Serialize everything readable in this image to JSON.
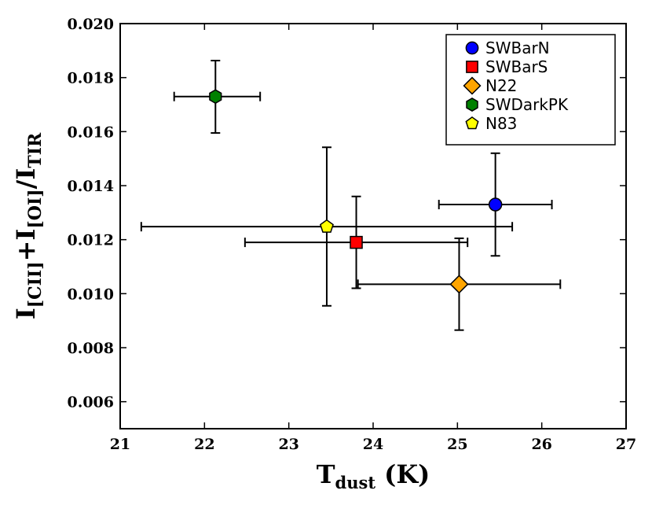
{
  "chart_data": {
    "type": "scatter",
    "title": "",
    "xlabel": {
      "main": "T",
      "sub": "dust",
      "tail": " (K)"
    },
    "ylabel": {
      "p1": "I",
      "p1_sub": "[CII]",
      "plus": "+",
      "p2": "I",
      "p2_sub": "[OI]",
      "slash": "/",
      "p3": "I",
      "p3_sub": "TIR"
    },
    "xlim": [
      21,
      27
    ],
    "ylim": [
      0.005,
      0.02
    ],
    "xticks": [
      21,
      22,
      23,
      24,
      25,
      26,
      27
    ],
    "yticks": [
      0.006,
      0.008,
      0.01,
      0.012,
      0.014,
      0.016,
      0.018,
      0.02
    ],
    "xtick_labels": [
      "21",
      "22",
      "23",
      "24",
      "25",
      "26",
      "27"
    ],
    "ytick_labels": [
      "0.006",
      "0.008",
      "0.010",
      "0.012",
      "0.014",
      "0.016",
      "0.018",
      "0.020"
    ],
    "grid": false,
    "legend_position": "top-right",
    "series": [
      {
        "name": "SWBarN",
        "marker": "circle",
        "color": "#0000ff",
        "x": 25.45,
        "y": 0.0133,
        "xerr": [
          24.78,
          26.12
        ],
        "yerr": [
          0.0114,
          0.0152
        ]
      },
      {
        "name": "SWBarS",
        "marker": "square",
        "color": "#ff0000",
        "x": 23.8,
        "y": 0.0119,
        "xerr": [
          22.48,
          25.12
        ],
        "yerr": [
          0.0102,
          0.0136
        ]
      },
      {
        "name": "N22",
        "marker": "diamond",
        "color": "#ffa500",
        "x": 25.02,
        "y": 0.01035,
        "xerr": [
          23.82,
          26.22
        ],
        "yerr": [
          0.00865,
          0.01205
        ]
      },
      {
        "name": "SWDarkPK",
        "marker": "hexagon",
        "color": "#008000",
        "x": 22.13,
        "y": 0.0173,
        "xerr": [
          21.64,
          22.66
        ],
        "yerr": [
          0.01595,
          0.01863
        ]
      },
      {
        "name": "N83",
        "marker": "pentagon",
        "color": "#ffff00",
        "x": 23.45,
        "y": 0.01248,
        "xerr": [
          21.25,
          25.65
        ],
        "yerr": [
          0.00955,
          0.01542
        ]
      }
    ]
  }
}
